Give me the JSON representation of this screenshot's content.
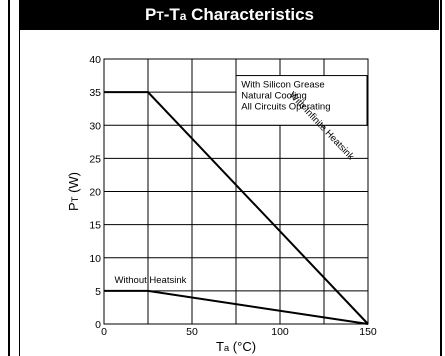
{
  "chart_data": {
    "type": "line",
    "title_main_1": "P",
    "title_sub_1": "T",
    "title_mid": "-T",
    "title_sub_2": "a",
    "title_main_2": " Characteristics",
    "xlabel_main": "T",
    "xlabel_sub": "a",
    "xlabel_unit": " (°C)",
    "ylabel_main": "P",
    "ylabel_sub": "T",
    "ylabel_unit": " (W)",
    "xlim": [
      0,
      150
    ],
    "ylim": [
      0,
      40
    ],
    "x_ticks": [
      "0",
      "50",
      "100",
      "150"
    ],
    "y_ticks": [
      "0",
      "5",
      "10",
      "15",
      "20",
      "25",
      "30",
      "35",
      "40"
    ],
    "x_grid": [
      0,
      25,
      50,
      75,
      100,
      125,
      150
    ],
    "grid": true,
    "legend_box": {
      "lines": [
        "With Silicon Grease",
        "Natural Cooling",
        "All Circuits Operating"
      ]
    },
    "series": [
      {
        "name": "With Infinite Heatsink",
        "x": [
          0,
          25,
          150
        ],
        "y": [
          35,
          35,
          0
        ]
      },
      {
        "name": "Without Heatsink",
        "x": [
          0,
          25,
          150
        ],
        "y": [
          5,
          5,
          0
        ]
      }
    ]
  }
}
